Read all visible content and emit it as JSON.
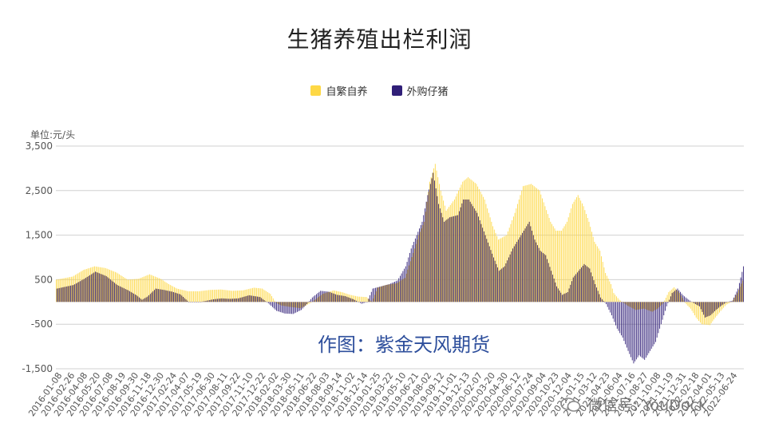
{
  "chart_data": {
    "type": "bar",
    "title": "生猪养殖出栏利润",
    "y_unit_label": "单位:元/头",
    "ylim": [
      -1500,
      3500
    ],
    "y_ticks": [
      "3,500",
      "2,500",
      "1,500",
      "500",
      "-500",
      "-1,500"
    ],
    "y_tick_values": [
      3500,
      2500,
      1500,
      500,
      -500,
      -1500
    ],
    "grid": true,
    "legend_position": "top-center",
    "series": [
      {
        "name": "自繁自养",
        "color": "#fed845"
      },
      {
        "name": "外购仔猪",
        "color": "#301f78"
      }
    ],
    "x_tick_labels": [
      "2016-01-08",
      "2016-02-26",
      "2016-04-08",
      "2016-05-20",
      "2016-07-08",
      "2016-08-19",
      "2016-09-30",
      "2016-11-18",
      "2016-12-30",
      "2017-02-24",
      "2017-04-07",
      "2017-05-19",
      "2017-06-30",
      "2017-08-11",
      "2017-09-22",
      "2017-11-10",
      "2017-12-22",
      "2018-02-02",
      "2018-03-30",
      "2018-05-11",
      "2018-06-22",
      "2018-08-03",
      "2018-09-14",
      "2018-11-02",
      "2018-12-14",
      "2019-01-25",
      "2019-03-22",
      "2019-05-10",
      "2019-06-21",
      "2019-08-02",
      "2019-09-12",
      "2019-11-01",
      "2019-12-13",
      "2020-02-07",
      "2020-03-20",
      "2020-04-30",
      "2020-06-12",
      "2020-07-24",
      "2020-09-04",
      "2020-10-23",
      "2020-12-04",
      "2021-01-15",
      "2021-03-12",
      "2021-04-23",
      "2021-06-04",
      "2021-07-16",
      "2021-08-27",
      "2021-10-08",
      "2021-11-19",
      "2021-12-31",
      "2022-02-18",
      "2022-04-01",
      "2022-05-13",
      "2022-06-24"
    ],
    "profile_self_bred": [
      [
        0,
        500
      ],
      [
        12,
        570
      ],
      [
        20,
        720
      ],
      [
        28,
        800
      ],
      [
        36,
        760
      ],
      [
        44,
        660
      ],
      [
        52,
        500
      ],
      [
        60,
        520
      ],
      [
        68,
        620
      ],
      [
        76,
        520
      ],
      [
        82,
        400
      ],
      [
        88,
        300
      ],
      [
        96,
        240
      ],
      [
        104,
        240
      ],
      [
        112,
        270
      ],
      [
        120,
        280
      ],
      [
        128,
        250
      ],
      [
        136,
        260
      ],
      [
        144,
        320
      ],
      [
        150,
        300
      ],
      [
        156,
        180
      ],
      [
        160,
        -20
      ],
      [
        164,
        -80
      ],
      [
        170,
        -110
      ],
      [
        178,
        -140
      ],
      [
        186,
        -10
      ],
      [
        194,
        180
      ],
      [
        202,
        260
      ],
      [
        208,
        220
      ],
      [
        214,
        160
      ],
      [
        220,
        120
      ],
      [
        226,
        110
      ],
      [
        230,
        0
      ],
      [
        234,
        320
      ],
      [
        240,
        380
      ],
      [
        248,
        420
      ],
      [
        254,
        540
      ],
      [
        260,
        1100
      ],
      [
        264,
        1500
      ],
      [
        268,
        1800
      ],
      [
        272,
        2700
      ],
      [
        276,
        3100
      ],
      [
        280,
        2500
      ],
      [
        284,
        2050
      ],
      [
        290,
        2300
      ],
      [
        296,
        2700
      ],
      [
        300,
        2800
      ],
      [
        306,
        2650
      ],
      [
        312,
        2300
      ],
      [
        318,
        1700
      ],
      [
        322,
        1400
      ],
      [
        328,
        1500
      ],
      [
        334,
        2000
      ],
      [
        340,
        2600
      ],
      [
        346,
        2650
      ],
      [
        352,
        2500
      ],
      [
        356,
        2150
      ],
      [
        360,
        1800
      ],
      [
        364,
        1600
      ],
      [
        368,
        1600
      ],
      [
        372,
        1800
      ],
      [
        376,
        2200
      ],
      [
        380,
        2400
      ],
      [
        384,
        2150
      ],
      [
        388,
        1800
      ],
      [
        392,
        1350
      ],
      [
        396,
        1150
      ],
      [
        400,
        650
      ],
      [
        404,
        400
      ],
      [
        406,
        200
      ],
      [
        410,
        50
      ],
      [
        416,
        -80
      ],
      [
        422,
        -180
      ],
      [
        428,
        -150
      ],
      [
        434,
        -220
      ],
      [
        438,
        -150
      ],
      [
        442,
        -30
      ],
      [
        446,
        220
      ],
      [
        450,
        330
      ],
      [
        454,
        200
      ],
      [
        458,
        -20
      ],
      [
        462,
        -150
      ],
      [
        466,
        -350
      ],
      [
        470,
        -500
      ],
      [
        476,
        -520
      ],
      [
        480,
        -350
      ],
      [
        484,
        -200
      ],
      [
        488,
        -60
      ],
      [
        492,
        0
      ],
      [
        496,
        200
      ],
      [
        500,
        480
      ]
    ],
    "profile_purchased": [
      [
        0,
        300
      ],
      [
        12,
        380
      ],
      [
        20,
        520
      ],
      [
        28,
        680
      ],
      [
        36,
        580
      ],
      [
        44,
        380
      ],
      [
        52,
        260
      ],
      [
        58,
        150
      ],
      [
        62,
        50
      ],
      [
        66,
        120
      ],
      [
        72,
        300
      ],
      [
        78,
        270
      ],
      [
        84,
        230
      ],
      [
        90,
        170
      ],
      [
        96,
        0
      ],
      [
        102,
        -10
      ],
      [
        108,
        20
      ],
      [
        114,
        60
      ],
      [
        120,
        80
      ],
      [
        126,
        70
      ],
      [
        132,
        80
      ],
      [
        140,
        150
      ],
      [
        148,
        110
      ],
      [
        154,
        -30
      ],
      [
        160,
        -200
      ],
      [
        166,
        -260
      ],
      [
        172,
        -270
      ],
      [
        178,
        -180
      ],
      [
        182,
        -50
      ],
      [
        186,
        100
      ],
      [
        192,
        250
      ],
      [
        198,
        230
      ],
      [
        204,
        160
      ],
      [
        210,
        130
      ],
      [
        216,
        60
      ],
      [
        222,
        -40
      ],
      [
        226,
        0
      ],
      [
        230,
        300
      ],
      [
        236,
        350
      ],
      [
        242,
        400
      ],
      [
        248,
        480
      ],
      [
        254,
        800
      ],
      [
        258,
        1200
      ],
      [
        262,
        1500
      ],
      [
        266,
        1800
      ],
      [
        270,
        2400
      ],
      [
        274,
        2900
      ],
      [
        278,
        2200
      ],
      [
        282,
        1800
      ],
      [
        286,
        1900
      ],
      [
        292,
        1950
      ],
      [
        296,
        2300
      ],
      [
        300,
        2300
      ],
      [
        306,
        2000
      ],
      [
        312,
        1500
      ],
      [
        318,
        1000
      ],
      [
        322,
        700
      ],
      [
        326,
        800
      ],
      [
        332,
        1200
      ],
      [
        338,
        1500
      ],
      [
        344,
        1800
      ],
      [
        348,
        1400
      ],
      [
        352,
        1150
      ],
      [
        356,
        1050
      ],
      [
        360,
        700
      ],
      [
        364,
        350
      ],
      [
        368,
        160
      ],
      [
        372,
        220
      ],
      [
        376,
        550
      ],
      [
        380,
        700
      ],
      [
        384,
        850
      ],
      [
        388,
        750
      ],
      [
        392,
        400
      ],
      [
        396,
        100
      ],
      [
        400,
        -50
      ],
      [
        404,
        -300
      ],
      [
        408,
        -600
      ],
      [
        412,
        -800
      ],
      [
        416,
        -1100
      ],
      [
        420,
        -1380
      ],
      [
        424,
        -1200
      ],
      [
        428,
        -1300
      ],
      [
        432,
        -1100
      ],
      [
        436,
        -900
      ],
      [
        440,
        -500
      ],
      [
        444,
        -100
      ],
      [
        448,
        200
      ],
      [
        452,
        300
      ],
      [
        456,
        150
      ],
      [
        460,
        50
      ],
      [
        464,
        -30
      ],
      [
        468,
        -100
      ],
      [
        472,
        -350
      ],
      [
        476,
        -300
      ],
      [
        480,
        -180
      ],
      [
        484,
        -80
      ],
      [
        488,
        0
      ],
      [
        492,
        30
      ],
      [
        496,
        300
      ],
      [
        500,
        800
      ]
    ]
  },
  "legend": {
    "item1": "自繁自养",
    "item2": "外购仔猪"
  },
  "watermark": "作图：紫金天风期货",
  "wechat_watermark": "微信号: YouDock",
  "colors": {
    "self_bred": "#fed845",
    "purchased": "#301f78",
    "grid": "#d0d0d0"
  }
}
